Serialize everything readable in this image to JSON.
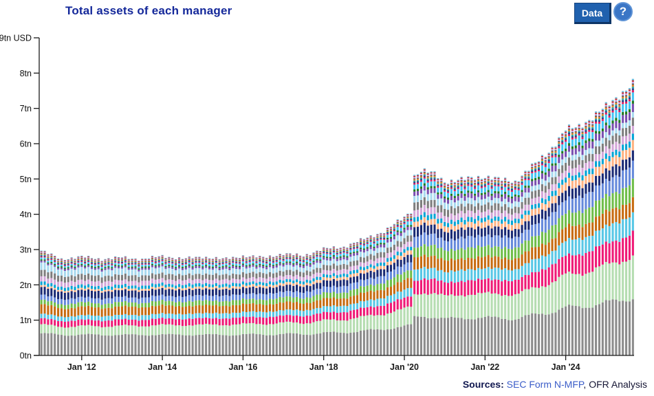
{
  "header": {
    "title": "Total assets of each manager",
    "data_button_label": "Data",
    "help_icon_glyph": "?"
  },
  "footer": {
    "sources_label": "Sources:",
    "source_link_text": "SEC Form N-MFP",
    "separator": ", ",
    "source_plain_text": "OFR Analysis"
  },
  "colors": {
    "title_text": "#14289A",
    "data_button_bg": "#2061AE",
    "help_button_bg": "#3B76C6",
    "link_blue": "#3A5CC8",
    "axis_line": "#1A1A1A"
  },
  "chart_data": {
    "type": "bar",
    "stacked": true,
    "title": "Total assets of each manager",
    "unit": "tn USD",
    "legend": "none (no legend shown; one color per manager)",
    "y_axis": {
      "min": 0,
      "max": 9,
      "tick_values": [
        0,
        1,
        2,
        3,
        4,
        5,
        6,
        7,
        8,
        9
      ],
      "tick_labels": [
        "0tn",
        "1tn",
        "2tn",
        "3tn",
        "4tn",
        "5tn",
        "6tn",
        "7tn",
        "8tn",
        "9tn USD"
      ]
    },
    "x_axis": {
      "first_bar": "2011-01",
      "last_bar": "2025-09",
      "bar_interval": "monthly",
      "ticks": [
        {
          "label": "Jan '12",
          "year": 2012
        },
        {
          "label": "Jan '14",
          "year": 2014
        },
        {
          "label": "Jan '16",
          "year": 2016
        },
        {
          "label": "Jan '18",
          "year": 2018
        },
        {
          "label": "Jan '20",
          "year": 2020
        },
        {
          "label": "Jan '22",
          "year": 2022
        },
        {
          "label": "Jan '24",
          "year": 2024
        }
      ]
    },
    "total_assets_keyframes_tn": [
      [
        2011.0,
        2.97
      ],
      [
        2011.5,
        2.73
      ],
      [
        2012.0,
        2.8
      ],
      [
        2012.5,
        2.73
      ],
      [
        2013.0,
        2.78
      ],
      [
        2013.5,
        2.73
      ],
      [
        2014.0,
        2.82
      ],
      [
        2014.5,
        2.74
      ],
      [
        2015.0,
        2.8
      ],
      [
        2015.5,
        2.73
      ],
      [
        2016.0,
        2.82
      ],
      [
        2016.5,
        2.78
      ],
      [
        2017.0,
        2.88
      ],
      [
        2017.5,
        2.83
      ],
      [
        2018.0,
        3.02
      ],
      [
        2018.5,
        3.08
      ],
      [
        2019.0,
        3.3
      ],
      [
        2019.5,
        3.52
      ],
      [
        2020.0,
        3.92
      ],
      [
        2020.17,
        4.1
      ],
      [
        2020.25,
        5.1
      ],
      [
        2020.42,
        5.25
      ],
      [
        2020.75,
        5.15
      ],
      [
        2021.0,
        4.93
      ],
      [
        2021.5,
        5.0
      ],
      [
        2022.0,
        5.08
      ],
      [
        2022.4,
        4.98
      ],
      [
        2022.75,
        4.93
      ],
      [
        2023.0,
        5.2
      ],
      [
        2023.3,
        5.48
      ],
      [
        2023.6,
        5.8
      ],
      [
        2024.0,
        6.4
      ],
      [
        2024.3,
        6.48
      ],
      [
        2024.6,
        6.7
      ],
      [
        2025.0,
        7.05
      ],
      [
        2025.3,
        7.35
      ],
      [
        2025.67,
        7.72
      ]
    ],
    "series": [
      {
        "id": "manager-01",
        "color": "#8C8C8C",
        "share_2011": 0.21,
        "share_2025": 0.205
      },
      {
        "id": "manager-02",
        "color": "#B5DDB1",
        "share_2011": 0.082,
        "share_2025": 0.148
      },
      {
        "id": "manager-03",
        "color": "#EF1A76",
        "share_2011": 0.058,
        "share_2025": 0.084
      },
      {
        "id": "manager-04",
        "color": "#57C7E6",
        "share_2011": 0.044,
        "share_2025": 0.067
      },
      {
        "id": "manager-05",
        "color": "#C76B10",
        "share_2011": 0.088,
        "share_2025": 0.054
      },
      {
        "id": "manager-06",
        "color": "#6FBE49",
        "share_2011": 0.041,
        "share_2025": 0.062
      },
      {
        "id": "manager-07",
        "color": "#6589DB",
        "share_2011": 0.051,
        "share_2025": 0.062
      },
      {
        "id": "manager-08",
        "color": "#1A2A74",
        "share_2011": 0.075,
        "share_2025": 0.038
      },
      {
        "id": "manager-09",
        "color": "#FFB282",
        "share_2011": 0.017,
        "share_2025": 0.036
      },
      {
        "id": "manager-10",
        "color": "#00A5D5",
        "share_2011": 0.034,
        "share_2025": 0.021
      },
      {
        "id": "manager-11",
        "color": "#D3A6D8",
        "share_2011": 0.051,
        "share_2025": 0.028
      },
      {
        "id": "manager-12",
        "color": "#7E7E7E",
        "share_2011": 0.061,
        "share_2025": 0.03
      },
      {
        "id": "manager-13",
        "color": "#A8DAEF",
        "share_2011": 0.068,
        "share_2025": 0.019
      },
      {
        "id": "manager-14",
        "color": "#7A4FB0",
        "share_2011": 0.017,
        "share_2025": 0.028
      },
      {
        "id": "manager-15",
        "color": "#1F7A1F",
        "share_2011": 0.013,
        "share_2025": 0.011
      },
      {
        "id": "manager-16",
        "color": "#45C4F2",
        "share_2011": 0.018,
        "share_2025": 0.03
      },
      {
        "id": "manager-17",
        "color": "#E8175D",
        "share_2011": 0.009,
        "share_2025": 0.007
      },
      {
        "id": "manager-18",
        "color": "#27408B",
        "share_2011": 0.009,
        "share_2025": 0.007
      },
      {
        "id": "manager-19",
        "color": "#2EA8A2",
        "share_2011": 0.008,
        "share_2025": 0.006
      },
      {
        "id": "manager-20",
        "color": "#E87E24",
        "share_2011": 0.008,
        "share_2025": 0.006
      },
      {
        "id": "manager-21",
        "color": "#5F5F5F",
        "share_2011": 0.008,
        "share_2025": 0.005
      },
      {
        "id": "manager-22",
        "color": "#C9A8E8",
        "share_2011": 0.008,
        "share_2025": 0.006
      },
      {
        "id": "manager-23",
        "color": "#C62828",
        "share_2011": 0.007,
        "share_2025": 0.005
      },
      {
        "id": "manager-24",
        "color": "#66B8D9",
        "share_2011": 0.007,
        "share_2025": 0.005
      }
    ]
  }
}
